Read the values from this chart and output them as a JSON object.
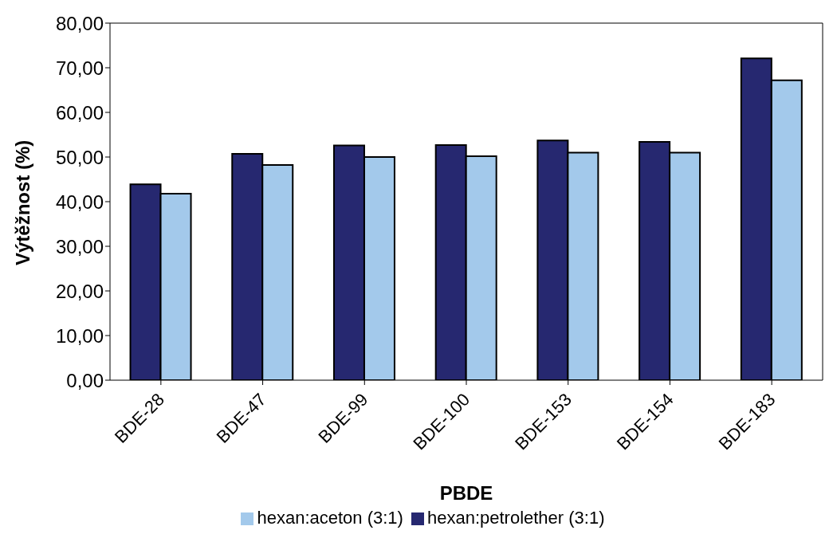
{
  "chart_data": {
    "type": "bar",
    "xlabel": "PBDE",
    "ylabel": "Výtěžnost (%)",
    "categories": [
      "BDE-28",
      "BDE-47",
      "BDE-99",
      "BDE-100",
      "BDE-153",
      "BDE-154",
      "BDE-183"
    ],
    "series": [
      {
        "name": "hexan:petrolether (3:1)",
        "color": "#262870",
        "values": [
          43.9,
          50.7,
          52.6,
          52.7,
          53.7,
          53.4,
          72.1
        ]
      },
      {
        "name": "hexan:aceton (3:1)",
        "color": "#a3c9eb",
        "values": [
          41.8,
          48.2,
          50.0,
          50.2,
          51.0,
          51.0,
          67.2
        ]
      }
    ],
    "ylim": [
      0,
      80
    ],
    "yticks": [
      {
        "value": 0,
        "label": "0,00"
      },
      {
        "value": 10,
        "label": "10,00"
      },
      {
        "value": 20,
        "label": "20,00"
      },
      {
        "value": 30,
        "label": "30,00"
      },
      {
        "value": 40,
        "label": "40,00"
      },
      {
        "value": 50,
        "label": "50,00"
      },
      {
        "value": 60,
        "label": "60,00"
      },
      {
        "value": 70,
        "label": "70,00"
      },
      {
        "value": 80,
        "label": "80,00"
      }
    ],
    "grid": false,
    "legend": "bottom"
  }
}
